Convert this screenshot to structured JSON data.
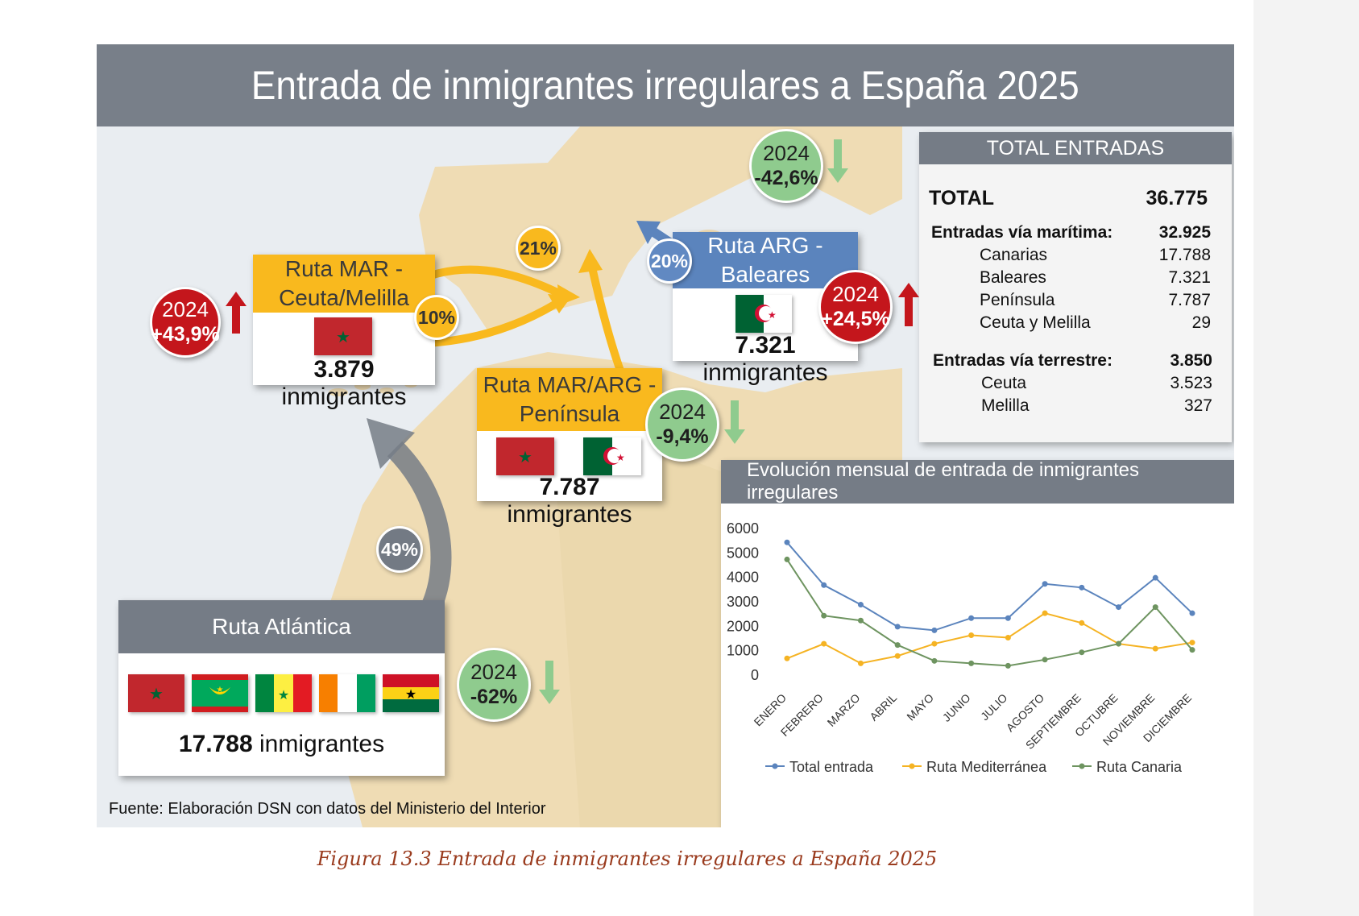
{
  "title": "Entrada de inmigrantes irregulares a España 2025",
  "routes": {
    "mar_ceuta": {
      "title_line1": "Ruta MAR -",
      "title_line2": "Ceuta/Melilla",
      "count": "3.879",
      "unit": "inmigrantes",
      "share": "10%",
      "year": "2024",
      "change": "+43,9%"
    },
    "arg_baleares": {
      "title_line1": "Ruta ARG -",
      "title_line2": "Baleares",
      "count": "7.321",
      "unit": "inmigrantes",
      "share": "20%",
      "year": "2024",
      "change": "+24,5%"
    },
    "mar_arg_peninsula": {
      "title_line1": "Ruta MAR/ARG -",
      "title_line2": "Península",
      "count": "7.787",
      "unit": "inmigrantes",
      "share": "21%",
      "year": "2024",
      "change": "-9,4%"
    },
    "atlantica": {
      "title": "Ruta Atlántica",
      "count": "17.788",
      "unit": "inmigrantes",
      "share": "49%",
      "year": "2024",
      "change": "-62%"
    }
  },
  "top_bubble": {
    "year": "2024",
    "change": "-42,6%"
  },
  "totals": {
    "header": "TOTAL ENTRADAS",
    "total_label": "TOTAL",
    "total_value": "36.775",
    "maritime_label": "Entradas vía marítima:",
    "maritime_value": "32.925",
    "maritime_items": [
      {
        "label": "Canarias",
        "value": "17.788"
      },
      {
        "label": "Baleares",
        "value": "7.321"
      },
      {
        "label": "Península",
        "value": "7.787"
      },
      {
        "label": "Ceuta y Melilla",
        "value": "29"
      }
    ],
    "land_label": "Entradas vía terrestre:",
    "land_value": "3.850",
    "land_items": [
      {
        "label": "Ceuta",
        "value": "3.523"
      },
      {
        "label": "Melilla",
        "value": "327"
      }
    ]
  },
  "chart_title": "Evolución mensual de entrada de inmigrantes irregulares",
  "chart_data": {
    "type": "line",
    "title": "Evolución mensual de entrada de inmigrantes irregulares",
    "categories": [
      "ENERO",
      "FEBRERO",
      "MARZO",
      "ABRIL",
      "MAYO",
      "JUNIO",
      "JULIO",
      "AGOSTO",
      "SEPTIEMBRE",
      "OCTUBRE",
      "NOVIEMBRE",
      "DICIEMBRE"
    ],
    "ylim": [
      0,
      6000
    ],
    "yticks": [
      "6000",
      "5000",
      "4000",
      "3000",
      "2000",
      "1000",
      "0"
    ],
    "grid": false,
    "legend_position": "bottom",
    "series": [
      {
        "name": "Total entrada",
        "color": "#5b84bd",
        "values": [
          5400,
          3650,
          2850,
          1950,
          1800,
          2300,
          2300,
          3700,
          3550,
          2750,
          3950,
          2500
        ]
      },
      {
        "name": "Ruta Mediterránea",
        "color": "#f5b323",
        "values": [
          650,
          1250,
          450,
          750,
          1250,
          1600,
          1500,
          2500,
          2100,
          1250,
          1050,
          1300
        ]
      },
      {
        "name": "Ruta Canaria",
        "color": "#6e9460",
        "values": [
          4700,
          2400,
          2200,
          1200,
          550,
          450,
          350,
          600,
          900,
          1250,
          2750,
          1000
        ]
      }
    ]
  },
  "source": "Fuente: Elaboración DSN con datos del Ministerio del Interior",
  "caption": "Figura 13.3 Entrada de inmigrantes irregulares a España 2025",
  "colors": {
    "banner": "#787f89",
    "orange": "#f9b91e",
    "blue": "#5b84bd",
    "red": "#c4161c",
    "green": "#8fcb8e",
    "land": "#efdcb4",
    "sea": "#e9edf1"
  },
  "icons": [
    "up-arrow-icon",
    "down-arrow-icon",
    "morocco-flag-icon",
    "algeria-flag-icon",
    "mauritania-flag-icon",
    "senegal-flag-icon",
    "ivory-coast-flag-icon",
    "ghana-flag-icon"
  ]
}
